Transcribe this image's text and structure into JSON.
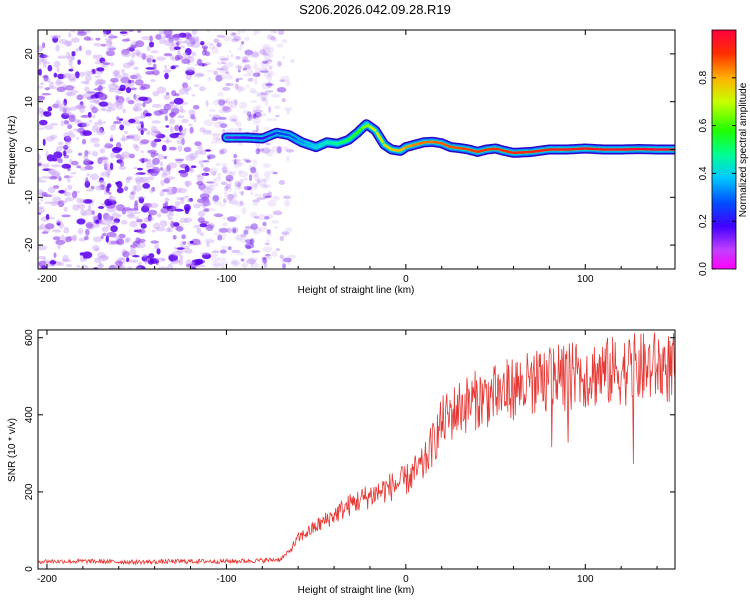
{
  "title": "S206.2026.042.09.28.R19",
  "chart_data": [
    {
      "type": "heatmap",
      "xlabel": "Height of straight line (km)",
      "ylabel": "Frequency (Hz)",
      "xlim": [
        -205,
        150
      ],
      "ylim": [
        -25,
        25
      ],
      "xticks": [
        -200,
        -100,
        0,
        100
      ],
      "yticks": [
        -20,
        -10,
        0,
        10,
        20
      ],
      "colorbar": {
        "label": "Normalized spectral amplitude",
        "range": [
          0,
          1
        ],
        "ticks": [
          "0.0",
          "0.2",
          "0.4",
          "0.6",
          "0.8"
        ]
      },
      "noise_region_x": [
        -205,
        -75
      ],
      "ridge": {
        "x": [
          -100,
          -90,
          -80,
          -72,
          -65,
          -58,
          -50,
          -44,
          -38,
          -32,
          -27,
          -22,
          -17,
          -12,
          -8,
          -3,
          0,
          5,
          10,
          15,
          20,
          25,
          30,
          35,
          40,
          45,
          50,
          55,
          60,
          70,
          80,
          90,
          100,
          110,
          120,
          130,
          140,
          150
        ],
        "freq": [
          2.5,
          2.5,
          2.3,
          3.5,
          3.0,
          1.5,
          0.5,
          1.5,
          1.2,
          2.0,
          3.5,
          5.3,
          4.0,
          1.0,
          0.0,
          -0.3,
          0.5,
          1.0,
          1.5,
          1.6,
          1.3,
          0.5,
          0.3,
          0.0,
          -0.5,
          0.0,
          0.2,
          -0.3,
          -0.7,
          -0.5,
          0.0,
          0.0,
          0.2,
          0.0,
          0.0,
          0.1,
          0.0,
          0.0
        ],
        "amplitude": [
          0.15,
          0.18,
          0.2,
          0.25,
          0.28,
          0.35,
          0.4,
          0.45,
          0.5,
          0.55,
          0.6,
          0.7,
          0.72,
          0.75,
          0.78,
          0.8,
          0.82,
          0.85,
          0.85,
          0.86,
          0.87,
          0.88,
          0.88,
          0.89,
          0.9,
          0.9,
          0.9,
          0.91,
          0.92,
          0.93,
          0.94,
          0.95,
          0.95,
          0.96,
          0.97,
          0.98,
          0.99,
          1.0
        ]
      }
    },
    {
      "type": "line",
      "xlabel": "Height of straight line (km)",
      "ylabel": "SNR (10 * v/v)",
      "xlim": [
        -205,
        150
      ],
      "ylim": [
        0,
        620
      ],
      "xticks": [
        -200,
        -100,
        0,
        100
      ],
      "yticks": [
        0,
        200,
        400,
        600
      ],
      "color": "#e53935",
      "series": [
        {
          "name": "SNR",
          "x": [
            -205,
            -180,
            -150,
            -120,
            -100,
            -80,
            -70,
            -65,
            -60,
            -50,
            -40,
            -30,
            -20,
            -10,
            0,
            10,
            20,
            30,
            40,
            50,
            60,
            70,
            80,
            90,
            100,
            110,
            120,
            130,
            140,
            150
          ],
          "y": [
            20,
            20,
            18,
            20,
            20,
            22,
            25,
            45,
            80,
            110,
            140,
            170,
            190,
            210,
            230,
            270,
            380,
            420,
            440,
            450,
            470,
            480,
            490,
            500,
            505,
            510,
            515,
            520,
            525,
            520
          ]
        }
      ]
    }
  ]
}
